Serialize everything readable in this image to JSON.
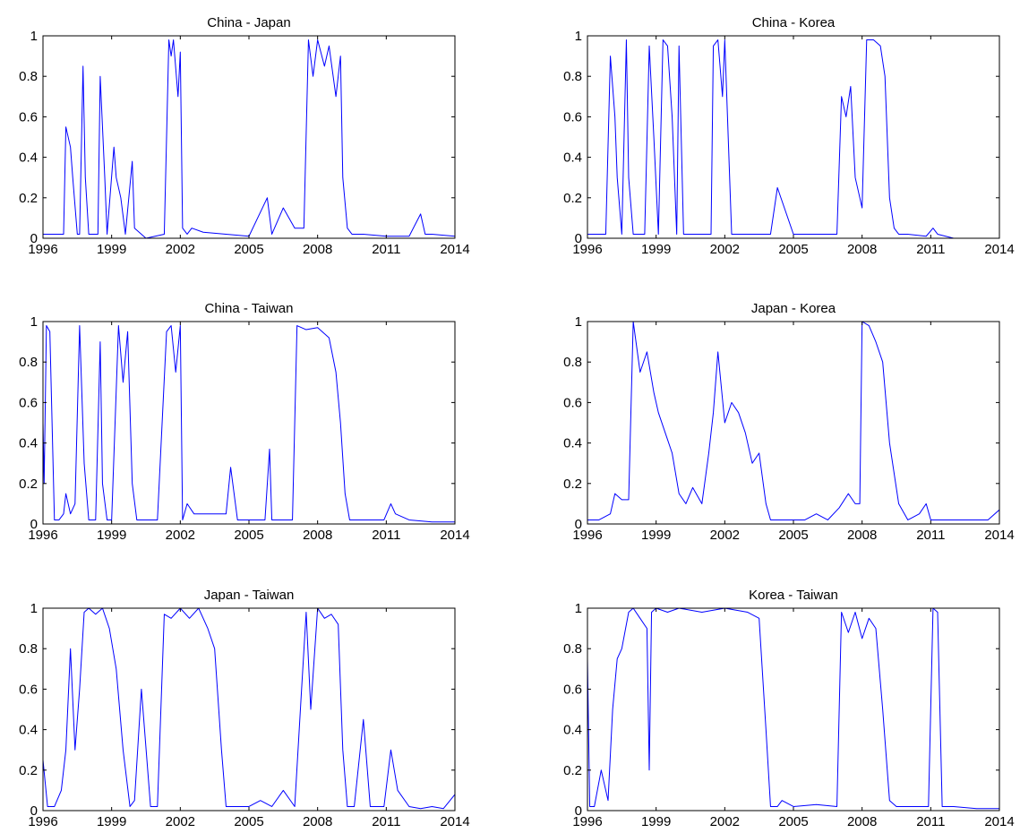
{
  "chart_data": [
    {
      "type": "line",
      "title": "China - Japan",
      "xlim": [
        1996,
        2014
      ],
      "ylim": [
        0,
        1
      ],
      "xticks": [
        1996,
        1999,
        2002,
        2005,
        2008,
        2011,
        2014
      ],
      "xtick_labels": [
        "1996",
        "1999",
        "2002",
        "2005",
        "2008",
        "2011",
        "2014"
      ],
      "yticks": [
        0,
        0.2,
        0.4,
        0.6,
        0.8,
        1
      ],
      "ytick_labels": [
        "0",
        "0.2",
        "0.4",
        "0.6",
        "0.8",
        "1"
      ],
      "color": "#0000ff",
      "x": [
        1996.0,
        1996.5,
        1996.9,
        1997.0,
        1997.2,
        1997.3,
        1997.5,
        1997.6,
        1997.75,
        1997.85,
        1998.0,
        1998.1,
        1998.4,
        1998.5,
        1998.7,
        1998.8,
        1999.1,
        1999.2,
        1999.4,
        1999.6,
        1999.9,
        2000.0,
        2000.3,
        2000.5,
        2001.3,
        2001.5,
        2001.6,
        2001.7,
        2001.9,
        2002.0,
        2002.1,
        2002.3,
        2002.5,
        2003.0,
        2004.0,
        2005.0,
        2005.8,
        2006.0,
        2006.5,
        2007.0,
        2007.4,
        2007.6,
        2007.8,
        2008.0,
        2008.3,
        2008.5,
        2008.8,
        2009.0,
        2009.1,
        2009.3,
        2009.5,
        2010.0,
        2011.0,
        2012.0,
        2012.5,
        2012.7,
        2013.0,
        2014.0
      ],
      "y": [
        0.02,
        0.02,
        0.02,
        0.55,
        0.45,
        0.3,
        0.02,
        0.02,
        0.85,
        0.3,
        0.02,
        0.02,
        0.02,
        0.8,
        0.3,
        0.02,
        0.45,
        0.3,
        0.2,
        0.02,
        0.38,
        0.05,
        0.02,
        0.0,
        0.02,
        0.98,
        0.9,
        0.98,
        0.7,
        0.92,
        0.05,
        0.02,
        0.05,
        0.03,
        0.02,
        0.01,
        0.2,
        0.02,
        0.15,
        0.05,
        0.05,
        0.98,
        0.8,
        0.98,
        0.85,
        0.95,
        0.7,
        0.9,
        0.3,
        0.05,
        0.02,
        0.02,
        0.01,
        0.01,
        0.12,
        0.02,
        0.02,
        0.01
      ]
    },
    {
      "type": "line",
      "title": "China - Korea",
      "xlim": [
        1996,
        2014
      ],
      "ylim": [
        0,
        1
      ],
      "xticks": [
        1996,
        1999,
        2002,
        2005,
        2008,
        2011,
        2014
      ],
      "xtick_labels": [
        "1996",
        "1999",
        "2002",
        "2005",
        "2008",
        "2011",
        "2014"
      ],
      "yticks": [
        0,
        0.2,
        0.4,
        0.6,
        0.8,
        1
      ],
      "ytick_labels": [
        "0",
        "0.2",
        "0.4",
        "0.6",
        "0.8",
        "1"
      ],
      "color": "#0000ff",
      "x": [
        1996.0,
        1996.4,
        1996.6,
        1996.8,
        1997.0,
        1997.2,
        1997.3,
        1997.5,
        1997.7,
        1997.8,
        1998.0,
        1998.3,
        1998.5,
        1998.7,
        1998.9,
        1999.1,
        1999.3,
        1999.5,
        1999.7,
        1999.9,
        2000.0,
        2000.2,
        2000.6,
        2001.0,
        2001.4,
        2001.5,
        2001.7,
        2001.9,
        2002.0,
        2002.3,
        2002.6,
        2003.0,
        2004.0,
        2004.3,
        2005.0,
        2006.0,
        2006.9,
        2007.1,
        2007.3,
        2007.5,
        2007.7,
        2007.9,
        2008.0,
        2008.2,
        2008.5,
        2008.8,
        2009.0,
        2009.2,
        2009.4,
        2009.6,
        2010.0,
        2010.8,
        2011.1,
        2011.3,
        2012.0,
        2014.0
      ],
      "y": [
        0.02,
        0.02,
        0.02,
        0.02,
        0.9,
        0.6,
        0.3,
        0.02,
        0.98,
        0.3,
        0.02,
        0.02,
        0.02,
        0.95,
        0.5,
        0.02,
        0.98,
        0.95,
        0.6,
        0.02,
        0.95,
        0.02,
        0.02,
        0.02,
        0.02,
        0.95,
        0.98,
        0.7,
        0.98,
        0.02,
        0.02,
        0.02,
        0.02,
        0.25,
        0.02,
        0.02,
        0.02,
        0.7,
        0.6,
        0.75,
        0.3,
        0.2,
        0.15,
        0.98,
        0.98,
        0.95,
        0.8,
        0.2,
        0.05,
        0.02,
        0.02,
        0.01,
        0.05,
        0.02,
        0.0,
        0.0
      ]
    },
    {
      "type": "line",
      "title": "China - Taiwan",
      "xlim": [
        1996,
        2014
      ],
      "ylim": [
        0,
        1
      ],
      "xticks": [
        1996,
        1999,
        2002,
        2005,
        2008,
        2011,
        2014
      ],
      "xtick_labels": [
        "1996",
        "1999",
        "2002",
        "2005",
        "2008",
        "2011",
        "2014"
      ],
      "yticks": [
        0,
        0.2,
        0.4,
        0.6,
        0.8,
        1
      ],
      "ytick_labels": [
        "0",
        "0.2",
        "0.4",
        "0.6",
        "0.8",
        "1"
      ],
      "color": "#0000ff",
      "x": [
        1996.0,
        1996.05,
        1996.15,
        1996.3,
        1996.5,
        1996.6,
        1996.7,
        1996.9,
        1997.0,
        1997.2,
        1997.4,
        1997.6,
        1997.8,
        1998.0,
        1998.3,
        1998.5,
        1998.6,
        1998.8,
        1999.0,
        1999.3,
        1999.5,
        1999.7,
        1999.9,
        2000.1,
        2000.3,
        2000.6,
        2001.0,
        2001.4,
        2001.6,
        2001.8,
        2002.0,
        2002.1,
        2002.3,
        2002.6,
        2003.0,
        2003.5,
        2004.0,
        2004.2,
        2004.5,
        2005.0,
        2005.7,
        2005.9,
        2006.0,
        2006.5,
        2006.9,
        2007.1,
        2007.5,
        2008.0,
        2008.5,
        2008.8,
        2009.0,
        2009.2,
        2009.4,
        2010.0,
        2010.9,
        2011.2,
        2011.4,
        2012.0,
        2013.0,
        2014.0
      ],
      "y": [
        0.5,
        0.2,
        0.98,
        0.95,
        0.02,
        0.02,
        0.02,
        0.05,
        0.15,
        0.05,
        0.1,
        0.98,
        0.3,
        0.02,
        0.02,
        0.9,
        0.2,
        0.02,
        0.02,
        0.98,
        0.7,
        0.95,
        0.2,
        0.02,
        0.02,
        0.02,
        0.02,
        0.95,
        0.98,
        0.75,
        0.98,
        0.02,
        0.1,
        0.05,
        0.05,
        0.05,
        0.05,
        0.28,
        0.02,
        0.02,
        0.02,
        0.37,
        0.02,
        0.02,
        0.02,
        0.98,
        0.96,
        0.97,
        0.92,
        0.75,
        0.5,
        0.15,
        0.02,
        0.02,
        0.02,
        0.1,
        0.05,
        0.02,
        0.01,
        0.01
      ]
    },
    {
      "type": "line",
      "title": "Japan - Korea",
      "xlim": [
        1996,
        2014
      ],
      "ylim": [
        0,
        1
      ],
      "xticks": [
        1996,
        1999,
        2002,
        2005,
        2008,
        2011,
        2014
      ],
      "xtick_labels": [
        "1996",
        "1999",
        "2002",
        "2005",
        "2008",
        "2011",
        "2014"
      ],
      "yticks": [
        0,
        0.2,
        0.4,
        0.6,
        0.8,
        1
      ],
      "ytick_labels": [
        "0",
        "0.2",
        "0.4",
        "0.6",
        "0.8",
        "1"
      ],
      "color": "#0000ff",
      "x": [
        1996.0,
        1996.5,
        1997.0,
        1997.2,
        1997.5,
        1997.8,
        1998.0,
        1998.3,
        1998.6,
        1998.9,
        1999.1,
        1999.4,
        1999.7,
        2000.0,
        2000.3,
        2000.6,
        2001.0,
        2001.3,
        2001.5,
        2001.7,
        2002.0,
        2002.3,
        2002.6,
        2002.9,
        2003.2,
        2003.5,
        2003.8,
        2004.0,
        2004.3,
        2005.0,
        2005.5,
        2006.0,
        2006.5,
        2007.0,
        2007.4,
        2007.7,
        2007.9,
        2008.0,
        2008.3,
        2008.6,
        2008.9,
        2009.2,
        2009.6,
        2010.0,
        2010.5,
        2010.8,
        2011.0,
        2011.5,
        2012.0,
        2012.6,
        2012.8,
        2013.0,
        2013.5,
        2014.0
      ],
      "y": [
        0.02,
        0.02,
        0.05,
        0.15,
        0.12,
        0.12,
        1.0,
        0.75,
        0.85,
        0.65,
        0.55,
        0.45,
        0.35,
        0.15,
        0.1,
        0.18,
        0.1,
        0.35,
        0.55,
        0.85,
        0.5,
        0.6,
        0.55,
        0.45,
        0.3,
        0.35,
        0.1,
        0.02,
        0.02,
        0.02,
        0.02,
        0.05,
        0.02,
        0.08,
        0.15,
        0.1,
        0.1,
        1.0,
        0.98,
        0.9,
        0.8,
        0.4,
        0.1,
        0.02,
        0.05,
        0.1,
        0.02,
        0.02,
        0.02,
        0.02,
        0.02,
        0.02,
        0.02,
        0.07
      ]
    },
    {
      "type": "line",
      "title": "Japan - Taiwan",
      "xlim": [
        1996,
        2014
      ],
      "ylim": [
        0,
        1
      ],
      "xticks": [
        1996,
        1999,
        2002,
        2005,
        2008,
        2011,
        2014
      ],
      "xtick_labels": [
        "1996",
        "1999",
        "2002",
        "2005",
        "2008",
        "2011",
        "2014"
      ],
      "yticks": [
        0,
        0.2,
        0.4,
        0.6,
        0.8,
        1
      ],
      "ytick_labels": [
        "0",
        "0.2",
        "0.4",
        "0.6",
        "0.8",
        "1"
      ],
      "color": "#0000ff",
      "x": [
        1996.0,
        1996.2,
        1996.5,
        1996.8,
        1997.0,
        1997.2,
        1997.4,
        1997.6,
        1997.8,
        1998.0,
        1998.3,
        1998.6,
        1998.9,
        1999.2,
        1999.5,
        1999.8,
        2000.0,
        2000.3,
        2000.7,
        2001.0,
        2001.3,
        2001.6,
        2002.0,
        2002.4,
        2002.8,
        2003.2,
        2003.5,
        2003.8,
        2004.0,
        2004.5,
        2005.0,
        2005.5,
        2006.0,
        2006.5,
        2007.0,
        2007.3,
        2007.5,
        2007.7,
        2008.0,
        2008.3,
        2008.6,
        2008.9,
        2009.1,
        2009.3,
        2009.6,
        2010.0,
        2010.3,
        2010.6,
        2010.9,
        2011.2,
        2011.5,
        2012.0,
        2012.5,
        2013.0,
        2013.5,
        2014.0
      ],
      "y": [
        0.25,
        0.02,
        0.02,
        0.1,
        0.3,
        0.8,
        0.3,
        0.6,
        0.98,
        1.0,
        0.97,
        1.0,
        0.9,
        0.7,
        0.3,
        0.02,
        0.05,
        0.6,
        0.02,
        0.02,
        0.97,
        0.95,
        1.0,
        0.95,
        1.0,
        0.9,
        0.8,
        0.3,
        0.02,
        0.02,
        0.02,
        0.05,
        0.02,
        0.1,
        0.02,
        0.6,
        0.98,
        0.5,
        1.0,
        0.95,
        0.97,
        0.92,
        0.3,
        0.02,
        0.02,
        0.45,
        0.02,
        0.02,
        0.02,
        0.3,
        0.1,
        0.02,
        0.01,
        0.02,
        0.01,
        0.08
      ]
    },
    {
      "type": "line",
      "title": "Korea - Taiwan",
      "xlim": [
        1996,
        2014
      ],
      "ylim": [
        0,
        1
      ],
      "xticks": [
        1996,
        1999,
        2002,
        2005,
        2008,
        2011,
        2014
      ],
      "xtick_labels": [
        "1996",
        "1999",
        "2002",
        "2005",
        "2008",
        "2011",
        "2014"
      ],
      "yticks": [
        0,
        0.2,
        0.4,
        0.6,
        0.8,
        1
      ],
      "ytick_labels": [
        "0",
        "0.2",
        "0.4",
        "0.6",
        "0.8",
        "1"
      ],
      "color": "#0000ff",
      "x": [
        1996.0,
        1996.1,
        1996.3,
        1996.6,
        1996.9,
        1997.1,
        1997.3,
        1997.5,
        1997.8,
        1998.0,
        1998.3,
        1998.6,
        1998.7,
        1998.8,
        1999.0,
        1999.5,
        2000.0,
        2001.0,
        2002.0,
        2003.0,
        2003.5,
        2003.8,
        2004.0,
        2004.3,
        2004.5,
        2005.0,
        2006.0,
        2006.9,
        2007.1,
        2007.4,
        2007.7,
        2008.0,
        2008.3,
        2008.6,
        2008.9,
        2009.2,
        2009.5,
        2010.0,
        2010.8,
        2010.9,
        2011.1,
        2011.3,
        2011.5,
        2012.0,
        2013.0,
        2014.0
      ],
      "y": [
        0.75,
        0.02,
        0.02,
        0.2,
        0.05,
        0.5,
        0.75,
        0.8,
        0.98,
        1.0,
        0.95,
        0.9,
        0.2,
        0.98,
        1.0,
        0.98,
        1.0,
        0.98,
        1.0,
        0.98,
        0.95,
        0.4,
        0.02,
        0.02,
        0.05,
        0.02,
        0.03,
        0.02,
        0.98,
        0.88,
        0.98,
        0.85,
        0.95,
        0.9,
        0.5,
        0.05,
        0.02,
        0.02,
        0.02,
        0.02,
        1.0,
        0.98,
        0.02,
        0.02,
        0.01,
        0.01
      ]
    }
  ]
}
